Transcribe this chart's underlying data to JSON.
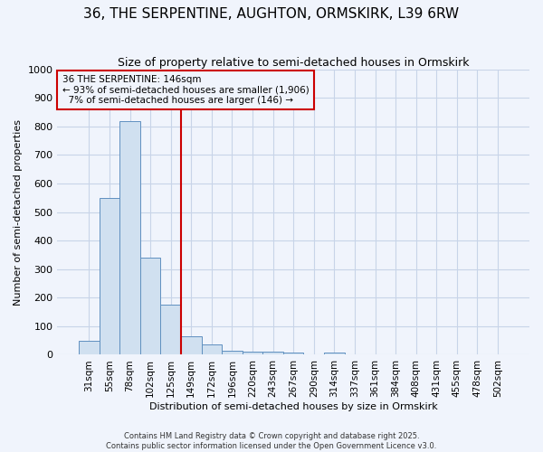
{
  "title": "36, THE SERPENTINE, AUGHTON, ORMSKIRK, L39 6RW",
  "subtitle": "Size of property relative to semi-detached houses in Ormskirk",
  "xlabel": "Distribution of semi-detached houses by size in Ormskirk",
  "ylabel": "Number of semi-detached properties",
  "categories": [
    "31sqm",
    "55sqm",
    "78sqm",
    "102sqm",
    "125sqm",
    "149sqm",
    "172sqm",
    "196sqm",
    "220sqm",
    "243sqm",
    "267sqm",
    "290sqm",
    "314sqm",
    "337sqm",
    "361sqm",
    "384sqm",
    "408sqm",
    "431sqm",
    "455sqm",
    "478sqm",
    "502sqm"
  ],
  "values": [
    50,
    550,
    820,
    340,
    175,
    65,
    35,
    15,
    12,
    10,
    8,
    0,
    8,
    0,
    0,
    0,
    0,
    0,
    0,
    0,
    0
  ],
  "bar_color": "#d0e0f0",
  "bar_edge_color": "#6090c0",
  "grid_color": "#c8d4e8",
  "background_color": "#f0f4fc",
  "vline_color": "#cc0000",
  "annotation_text": "36 THE SERPENTINE: 146sqm\n← 93% of semi-detached houses are smaller (1,906)\n  7% of semi-detached houses are larger (146) →",
  "annotation_box_color": "#cc0000",
  "footer_line1": "Contains HM Land Registry data © Crown copyright and database right 2025.",
  "footer_line2": "Contains public sector information licensed under the Open Government Licence v3.0.",
  "ylim": [
    0,
    1000
  ],
  "yticks": [
    0,
    100,
    200,
    300,
    400,
    500,
    600,
    700,
    800,
    900,
    1000
  ],
  "title_fontsize": 11,
  "subtitle_fontsize": 9,
  "label_fontsize": 8,
  "tick_fontsize": 8,
  "xtick_fontsize": 7.5
}
